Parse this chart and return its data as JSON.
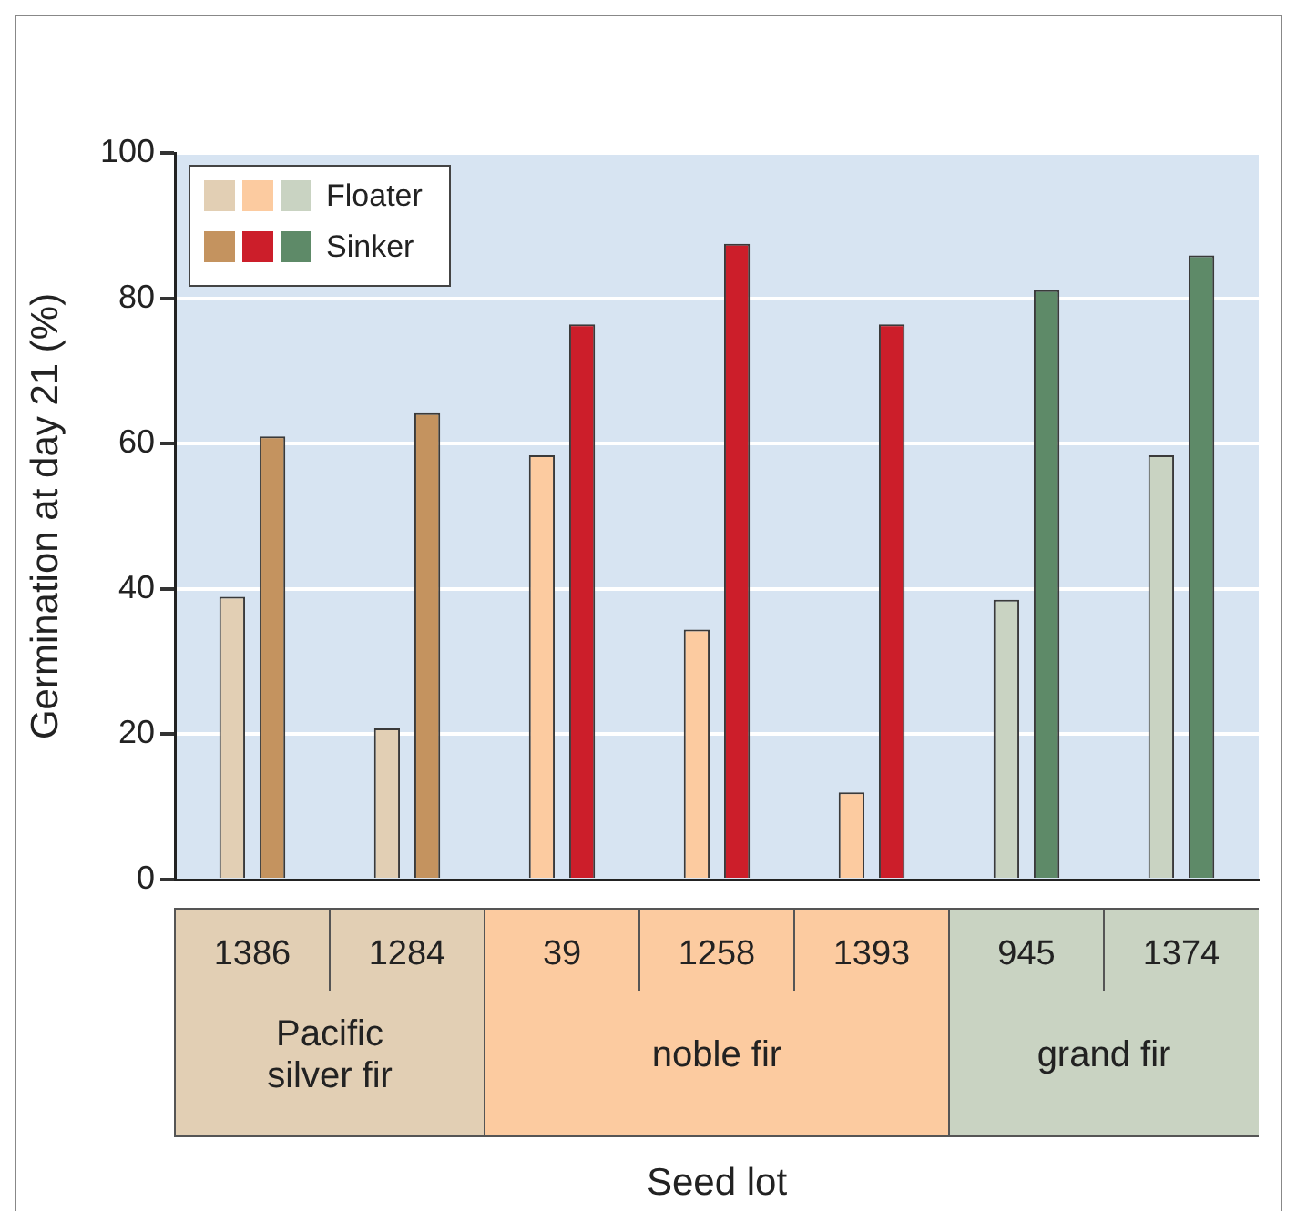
{
  "chart_data": {
    "type": "bar",
    "categories": [
      "1386",
      "1284",
      "39",
      "1258",
      "1393",
      "945",
      "1374"
    ],
    "series": [
      {
        "name": "Floater",
        "colors": [
          "#e2cfb4",
          "#e2cfb4",
          "#fccba0",
          "#fccba0",
          "#fccba0",
          "#c9d3c2",
          "#c9d3c2"
        ],
        "values": [
          38.9,
          20.8,
          58.4,
          34.4,
          12.0,
          38.5,
          58.4
        ]
      },
      {
        "name": "Sinker",
        "colors": [
          "#c4935f",
          "#c4935f",
          "#cc1e2a",
          "#cc1e2a",
          "#cc1e2a",
          "#5e8a68",
          "#5e8a68"
        ],
        "values": [
          61.0,
          64.2,
          76.4,
          87.5,
          76.4,
          81.1,
          85.9
        ]
      }
    ],
    "ylabel": "Germination at day 21 (%)",
    "xlabel": "Seed lot",
    "annotations": [
      "Pacific\nsilver fir",
      "noble fir",
      "grand fir"
    ],
    "ylim": [
      0,
      100
    ],
    "yticks": [
      0,
      20,
      40,
      60,
      80,
      100
    ],
    "grid": "y",
    "legend": "top left"
  }
}
